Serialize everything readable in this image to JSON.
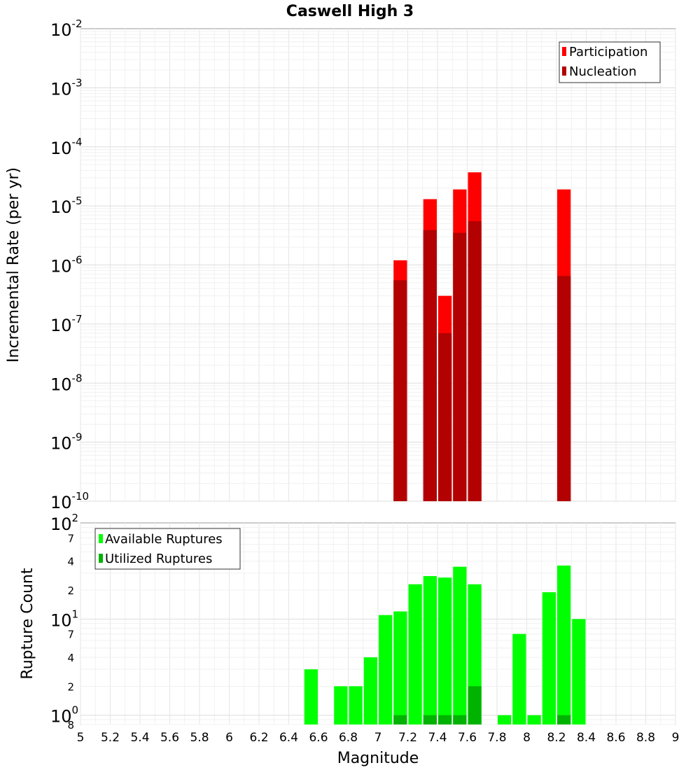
{
  "chart_data": [
    {
      "type": "bar",
      "title": "Caswell High 3",
      "xlabel": "",
      "ylabel": "Incremental Rate (per yr)",
      "yscale": "log",
      "xlim": [
        5,
        9
      ],
      "ylim": [
        1e-10,
        0.01
      ],
      "bin_width": 0.1,
      "grid": true,
      "legend_position": "top-right",
      "y_tick_labels": [
        {
          "value": 0.01,
          "base": "10",
          "exp": "-2"
        },
        {
          "value": 0.001,
          "base": "10",
          "exp": "-3"
        },
        {
          "value": 0.0001,
          "base": "10",
          "exp": "-4"
        },
        {
          "value": 1e-05,
          "base": "10",
          "exp": "-5"
        },
        {
          "value": 1e-06,
          "base": "10",
          "exp": "-6"
        },
        {
          "value": 1e-07,
          "base": "10",
          "exp": "-7"
        },
        {
          "value": 1e-08,
          "base": "10",
          "exp": "-8"
        },
        {
          "value": 1e-09,
          "base": "10",
          "exp": "-9"
        },
        {
          "value": 1e-10,
          "base": "10",
          "exp": "-10"
        }
      ],
      "series": [
        {
          "name": "Participation",
          "color": "#ff0000",
          "x": [
            7.15,
            7.35,
            7.45,
            7.55,
            7.65,
            8.25
          ],
          "values": [
            1.2e-06,
            1.3e-05,
            3e-07,
            1.9e-05,
            3.7e-05,
            1.9e-05
          ]
        },
        {
          "name": "Nucleation",
          "color": "#b30000",
          "x": [
            7.15,
            7.35,
            7.45,
            7.55,
            7.65,
            8.25
          ],
          "values": [
            5.5e-07,
            3.9e-06,
            7e-08,
            3.5e-06,
            5.5e-06,
            6.5e-07
          ]
        }
      ]
    },
    {
      "type": "bar",
      "title": "",
      "xlabel": "Magnitude",
      "ylabel": "Rupture Count",
      "yscale": "log",
      "xlim": [
        5,
        9
      ],
      "ylim": [
        0.8,
        100
      ],
      "bin_width": 0.1,
      "grid": true,
      "legend_position": "top-left",
      "x_ticks": [
        "5",
        "5.2",
        "5.4",
        "5.6",
        "5.8",
        "6",
        "6.2",
        "6.4",
        "6.6",
        "6.8",
        "7",
        "7.2",
        "7.4",
        "7.6",
        "7.8",
        "8",
        "8.2",
        "8.4",
        "8.6",
        "8.8",
        "9"
      ],
      "y_tick_labels": [
        {
          "value": 100,
          "base": "10",
          "exp": "2",
          "minor": ""
        },
        {
          "value": 70,
          "base": "",
          "exp": "",
          "minor": "7"
        },
        {
          "value": 40,
          "base": "",
          "exp": "",
          "minor": "4"
        },
        {
          "value": 20,
          "base": "",
          "exp": "",
          "minor": "2"
        },
        {
          "value": 10,
          "base": "10",
          "exp": "1",
          "minor": ""
        },
        {
          "value": 7,
          "base": "",
          "exp": "",
          "minor": "7"
        },
        {
          "value": 4,
          "base": "",
          "exp": "",
          "minor": "4"
        },
        {
          "value": 2,
          "base": "",
          "exp": "",
          "minor": "2"
        },
        {
          "value": 1,
          "base": "10",
          "exp": "0",
          "minor": ""
        },
        {
          "value": 0.8,
          "base": "",
          "exp": "",
          "minor": "8"
        }
      ],
      "series": [
        {
          "name": "Available Ruptures",
          "color": "#00ff00",
          "x": [
            6.55,
            6.75,
            6.85,
            6.95,
            7.05,
            7.15,
            7.25,
            7.35,
            7.45,
            7.55,
            7.65,
            7.85,
            7.95,
            8.05,
            8.15,
            8.25,
            8.35
          ],
          "values": [
            3,
            2,
            2,
            4,
            11,
            12,
            23,
            28,
            27,
            35,
            23,
            1,
            7,
            1,
            19,
            36,
            10
          ]
        },
        {
          "name": "Utilized Ruptures",
          "color": "#00b300",
          "x": [
            7.15,
            7.35,
            7.45,
            7.55,
            7.65,
            8.25
          ],
          "values": [
            1,
            1,
            1,
            1,
            2,
            1
          ]
        }
      ]
    }
  ]
}
